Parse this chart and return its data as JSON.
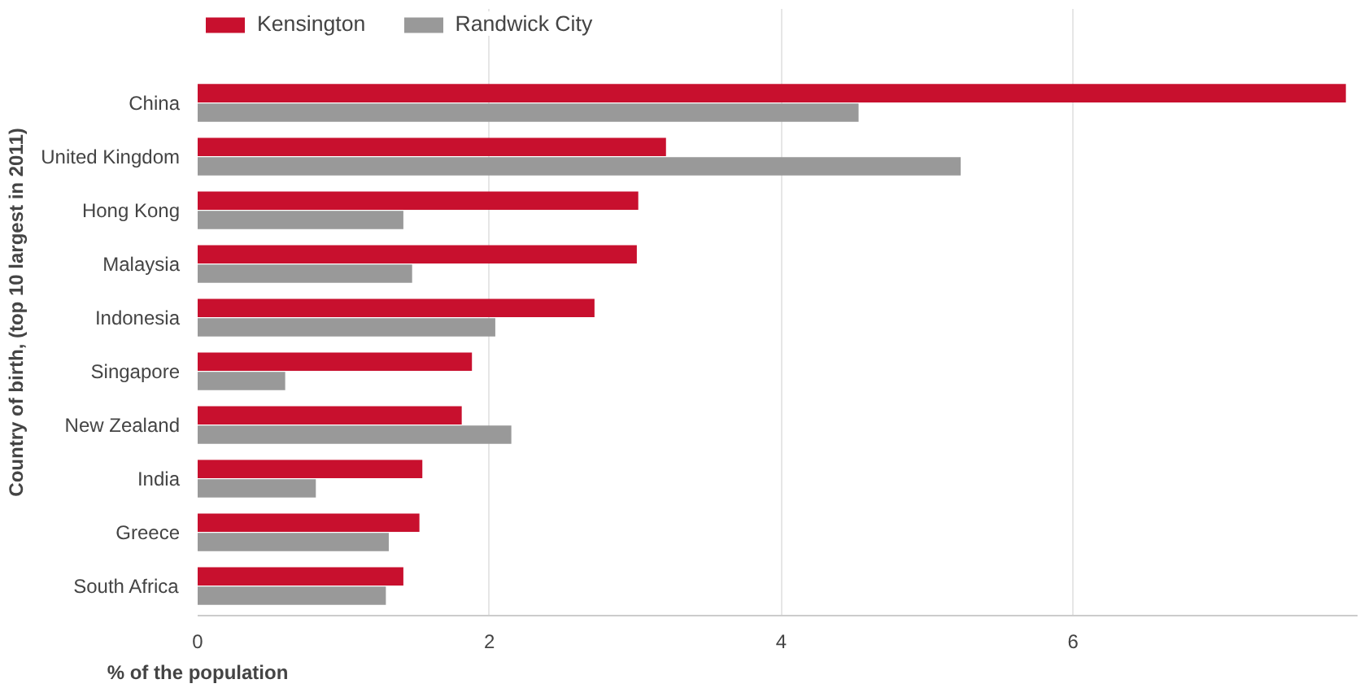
{
  "chart_data": {
    "type": "bar",
    "orientation": "horizontal",
    "xlabel": "% of the population",
    "ylabel": "Country of birth, (top 10 largest in 2011)",
    "categories": [
      "China",
      "United Kingdom",
      "Hong Kong",
      "Malaysia",
      "Indonesia",
      "Singapore",
      "New Zealand",
      "India",
      "Greece",
      "South Africa"
    ],
    "series": [
      {
        "name": "Kensington",
        "color": "#c8102e",
        "values": [
          7.87,
          3.21,
          3.02,
          3.01,
          2.72,
          1.88,
          1.81,
          1.54,
          1.52,
          1.41
        ]
      },
      {
        "name": "Randwick City",
        "color": "#999999",
        "values": [
          4.53,
          5.23,
          1.41,
          1.47,
          2.04,
          0.6,
          2.15,
          0.81,
          1.31,
          1.29
        ]
      }
    ],
    "xlim": [
      0,
      7.95
    ],
    "xticks": [
      0,
      2,
      4,
      6
    ],
    "grid": "x",
    "legend": "top left"
  }
}
